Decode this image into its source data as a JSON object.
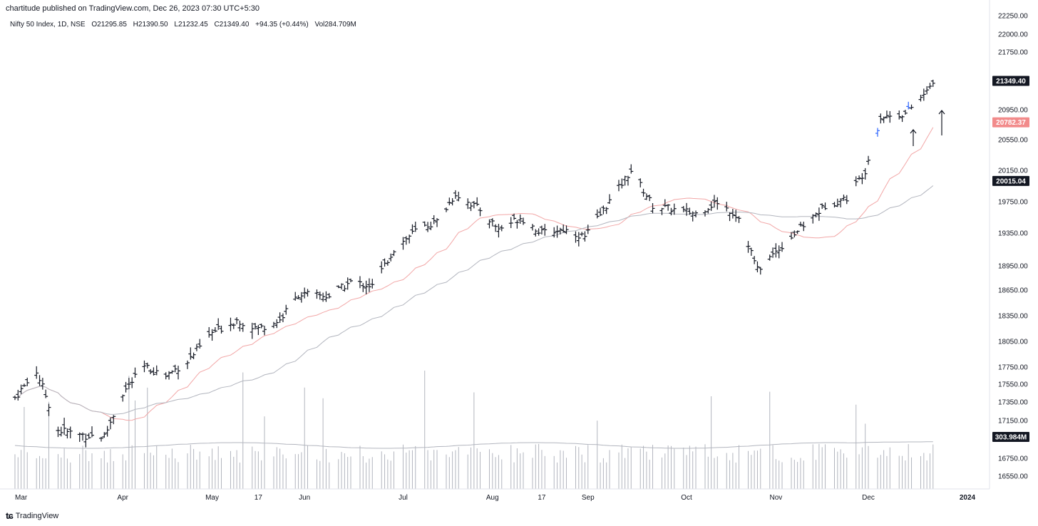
{
  "header": {
    "published_by": "chartitude published on TradingView.com, Dec 26, 2023 07:30 UTC+5:30"
  },
  "symbol": {
    "name": "Nifty 50 Index, 1D, NSE",
    "open": "O21295.85",
    "high": "H21390.50",
    "low": "L21232.45",
    "close": "C21349.40",
    "change": "+94.35 (+0.44%)",
    "volume": "Vol284.709M"
  },
  "footer": {
    "logo_text": "TradingView"
  },
  "chart_data": {
    "type": "ohlc",
    "title": "Nifty 50 Index, 1D, NSE",
    "xlabel": "",
    "ylabel": "",
    "ylim": [
      16380,
      22300
    ],
    "y_ticks": [
      22250,
      22000,
      21750,
      20950,
      20550,
      20150,
      19750,
      19350,
      18950,
      18650,
      18350,
      18050,
      17750,
      17550,
      17350,
      17150,
      16750,
      16550
    ],
    "x_ticks": [
      "Mar",
      "Apr",
      "May",
      "17",
      "Jun",
      "Jul",
      "Aug",
      "17",
      "Sep",
      "Oct",
      "Nov",
      "Dec",
      "2024"
    ],
    "price_tags": [
      {
        "value": "21349.40",
        "bg": "#131722",
        "fg": "#ffffff"
      },
      {
        "value": "20782.37",
        "bg": "#f28b8b",
        "fg": "#ffffff"
      },
      {
        "value": "20015.04",
        "bg": "#131722",
        "fg": "#ffffff"
      },
      {
        "value": "303.984M",
        "bg": "#131722",
        "fg": "#ffffff"
      }
    ],
    "close_anchors": [
      [
        "2023-02-27",
        17400
      ],
      [
        "2023-03-06",
        17700
      ],
      [
        "2023-03-13",
        17050
      ],
      [
        "2023-03-20",
        17000
      ],
      [
        "2023-03-28",
        16980
      ],
      [
        "2023-04-03",
        17450
      ],
      [
        "2023-04-10",
        17750
      ],
      [
        "2023-04-17",
        17650
      ],
      [
        "2023-04-24",
        17820
      ],
      [
        "2023-05-02",
        18150
      ],
      [
        "2023-05-10",
        18300
      ],
      [
        "2023-05-17",
        18200
      ],
      [
        "2023-05-24",
        18300
      ],
      [
        "2023-05-30",
        18600
      ],
      [
        "2023-06-09",
        18580
      ],
      [
        "2023-06-16",
        18750
      ],
      [
        "2023-06-23",
        18700
      ],
      [
        "2023-06-30",
        19150
      ],
      [
        "2023-07-07",
        19380
      ],
      [
        "2023-07-14",
        19500
      ],
      [
        "2023-07-20",
        19850
      ],
      [
        "2023-07-28",
        19650
      ],
      [
        "2023-08-03",
        19400
      ],
      [
        "2023-08-10",
        19550
      ],
      [
        "2023-08-17",
        19350
      ],
      [
        "2023-08-24",
        19400
      ],
      [
        "2023-08-31",
        19300
      ],
      [
        "2023-09-07",
        19700
      ],
      [
        "2023-09-15",
        20150
      ],
      [
        "2023-09-22",
        19700
      ],
      [
        "2023-09-29",
        19650
      ],
      [
        "2023-10-06",
        19600
      ],
      [
        "2023-10-13",
        19750
      ],
      [
        "2023-10-20",
        19550
      ],
      [
        "2023-10-26",
        18900
      ],
      [
        "2023-11-03",
        19200
      ],
      [
        "2023-11-10",
        19450
      ],
      [
        "2023-11-17",
        19700
      ],
      [
        "2023-11-24",
        19800
      ],
      [
        "2023-11-30",
        20150
      ],
      [
        "2023-12-05",
        20850
      ],
      [
        "2023-12-13",
        20900
      ],
      [
        "2023-12-20",
        21200
      ],
      [
        "2023-12-22",
        21349.4
      ]
    ],
    "volume_range": [
      0,
      1800
    ],
    "colors": {
      "bars": "#131722",
      "blue_bars": "#2962ff",
      "ma_short": "#f2a6a6",
      "ma_long": "#b2b5be",
      "volume": "#b2b5be",
      "grid": "none"
    },
    "grid": false,
    "annotations": [
      "up-arrow",
      "up-arrow"
    ]
  }
}
